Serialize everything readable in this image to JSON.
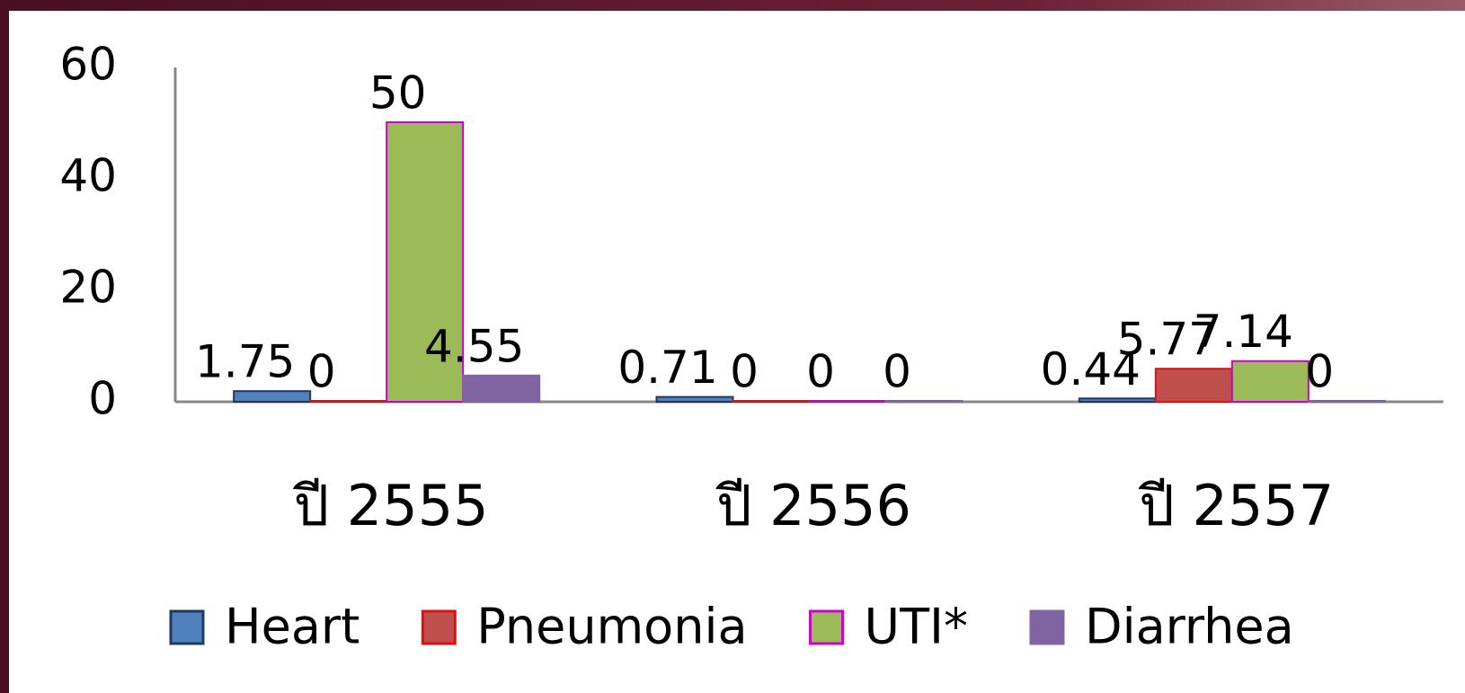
{
  "chart_data": {
    "type": "bar",
    "categories": [
      "ปี 2555",
      "ปี 2556",
      "ปี 2557"
    ],
    "series": [
      {
        "name": "Heart",
        "color": "#4f81bd",
        "values": [
          1.75,
          0.71,
          0.44
        ]
      },
      {
        "name": "Pneumonia",
        "color": "#c0504d",
        "values": [
          0,
          0,
          5.77
        ]
      },
      {
        "name": "UTI*",
        "color": "#9bbb59",
        "values": [
          50,
          0,
          7.14
        ]
      },
      {
        "name": "Diarrhea",
        "color": "#8064a2",
        "values": [
          4.55,
          0,
          0
        ]
      }
    ],
    "ylim": [
      0,
      60
    ],
    "yticks": [
      0,
      20,
      40,
      60
    ],
    "grid": false,
    "legend": "bottom"
  }
}
